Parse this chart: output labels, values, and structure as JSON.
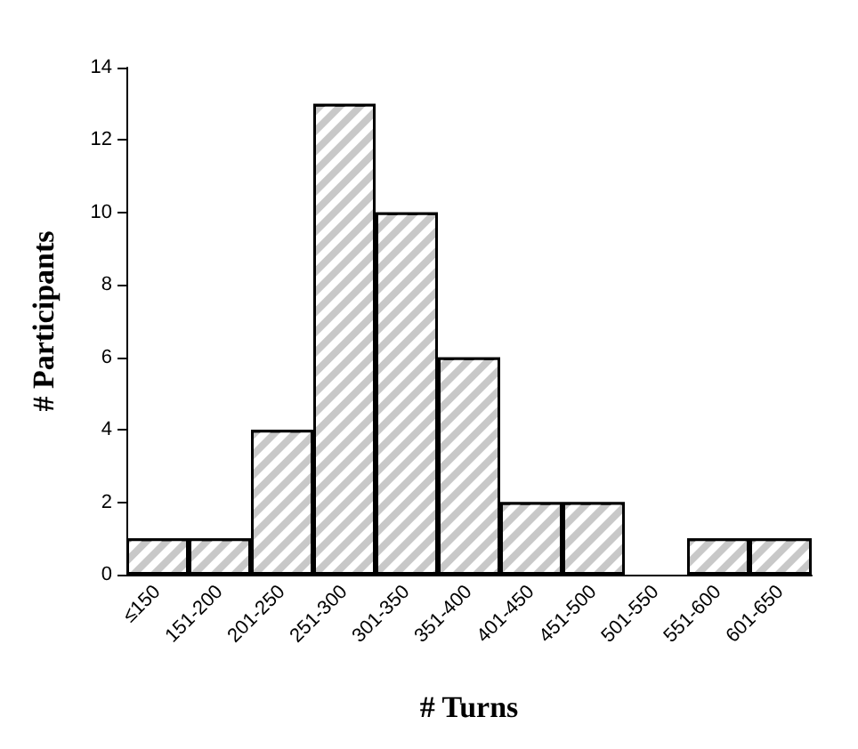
{
  "chart_data": {
    "type": "bar",
    "xlabel": "# Turns",
    "ylabel": "# Participants",
    "categories": [
      "≤150",
      "151-200",
      "201-250",
      "251-300",
      "301-350",
      "351-400",
      "401-450",
      "451-500",
      "501-550",
      "551-600",
      "601-650"
    ],
    "values": [
      1,
      1,
      4,
      13,
      10,
      6,
      2,
      2,
      0,
      1,
      1
    ],
    "color": "#c8c8c8",
    "ylim": [
      0,
      14
    ],
    "yticks": [
      0,
      2,
      4,
      6,
      8,
      10,
      12,
      14
    ],
    "grid": false
  }
}
